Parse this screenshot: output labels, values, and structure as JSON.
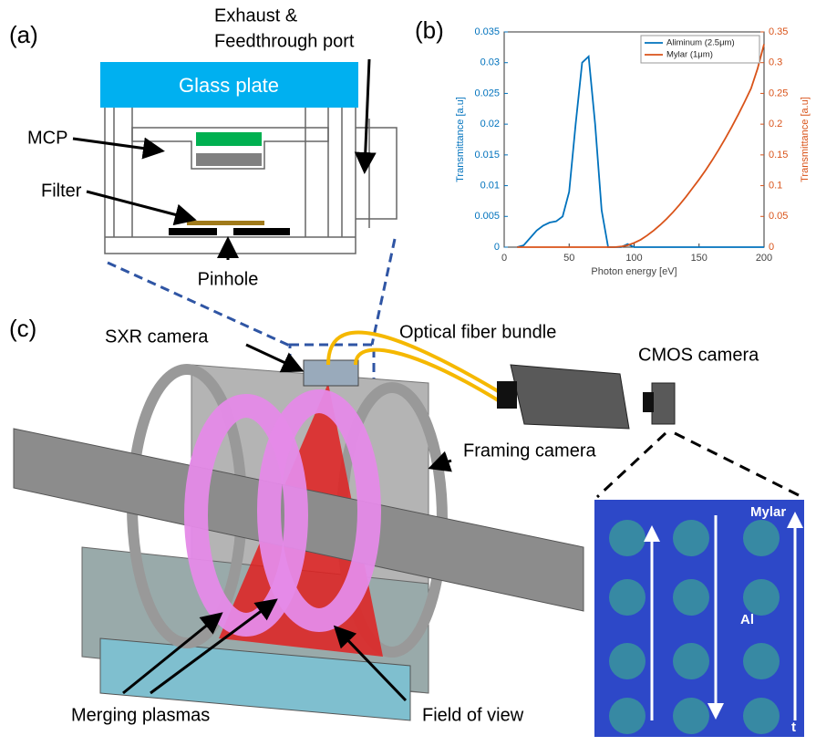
{
  "panels": {
    "a": {
      "label": "(a)",
      "glass_plate": "Glass plate",
      "exhaust": [
        "Exhaust &",
        "Feedthrough port"
      ],
      "mcp": "MCP",
      "filter": "Filter",
      "pinhole": "Pinhole"
    },
    "b": {
      "label": "(b)"
    },
    "c": {
      "label": "(c)",
      "sxr_camera": "SXR camera",
      "fiber": "Optical fiber bundle",
      "cmos": "CMOS camera",
      "framing": "Framing camera",
      "plasmas": "Merging plasmas",
      "fov": "Field of view",
      "mylar": "Mylar",
      "al": "Al",
      "t": "t"
    }
  },
  "chart_data": {
    "type": "line",
    "xlabel": "Photon energy [eV]",
    "ylabel": "Transmittance [a.u]",
    "y2label": "Transmittance [a.u]",
    "x": [
      10,
      15,
      20,
      25,
      30,
      35,
      40,
      45,
      50,
      55,
      60,
      65,
      70,
      75,
      80,
      85,
      90,
      95,
      100,
      105,
      110,
      115,
      120,
      125,
      130,
      135,
      140,
      145,
      150,
      155,
      160,
      165,
      170,
      175,
      180,
      185,
      190,
      195,
      200
    ],
    "series": [
      {
        "name": "Aliminum (2.5μm)",
        "color": "#0072bd",
        "values": [
          0,
          0.0003,
          0.0015,
          0.0027,
          0.0035,
          0.004,
          0.0042,
          0.005,
          0.009,
          0.02,
          0.03,
          0.031,
          0.02,
          0.006,
          0,
          0,
          0,
          0.0005,
          0,
          0,
          0,
          0,
          0,
          0,
          0,
          0,
          0,
          0,
          0,
          0,
          0,
          0,
          0,
          0,
          0,
          0,
          0,
          0,
          0
        ]
      },
      {
        "name": "Mylar (1μm)",
        "color": "#d95319",
        "axis": "y2",
        "values": [
          0,
          0,
          0,
          0,
          0,
          0,
          0,
          0,
          0,
          0,
          0,
          0,
          0,
          0,
          0,
          0,
          0.001,
          0.003,
          0.007,
          0.012,
          0.019,
          0.027,
          0.036,
          0.046,
          0.057,
          0.069,
          0.082,
          0.096,
          0.11,
          0.125,
          0.141,
          0.158,
          0.176,
          0.195,
          0.215,
          0.236,
          0.258,
          0.29,
          0.33
        ]
      }
    ],
    "xlim": [
      0,
      200
    ],
    "xticks": [
      0,
      50,
      100,
      150,
      200
    ],
    "ylim": [
      0,
      0.035
    ],
    "yticks": [
      0,
      0.005,
      0.01,
      0.015,
      0.02,
      0.025,
      0.03,
      0.035
    ],
    "y2lim": [
      0,
      0.35
    ],
    "y2ticks": [
      0,
      0.05,
      0.1,
      0.15,
      0.2,
      0.25,
      0.3,
      0.35
    ],
    "legend": "upper right"
  }
}
